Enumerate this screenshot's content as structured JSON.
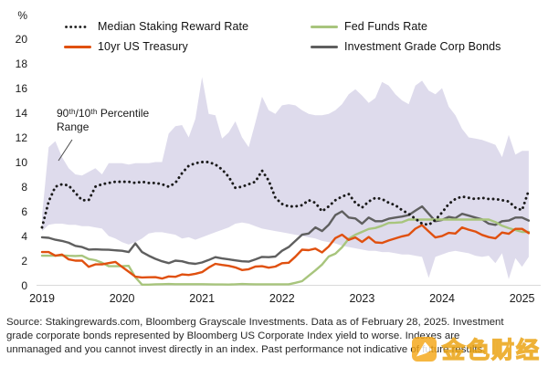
{
  "legend": {
    "items": [
      {
        "label": "Median Staking Reward Rate",
        "color": "#1a1a1a",
        "style": "dotted"
      },
      {
        "label": "Fed Funds Rate",
        "color": "#a8c57d",
        "style": "solid"
      },
      {
        "label": "10yr US Treasury",
        "color": "#e0500f",
        "style": "solid"
      },
      {
        "label": "Investment Grade Corp Bonds",
        "color": "#5f5f5f",
        "style": "solid"
      }
    ]
  },
  "axis": {
    "unit_label": "%",
    "y_ticks": [
      0,
      2,
      4,
      6,
      8,
      10,
      12,
      14,
      16,
      18,
      20
    ],
    "x_ticks": [
      "2019",
      "2020",
      "2021",
      "2022",
      "2023",
      "2024",
      "2025"
    ]
  },
  "annotation": {
    "line1": "90ᵗʰ/10ᵗʰ Percentile",
    "line2": "Range"
  },
  "footer": {
    "lines": [
      "Source: Stakingrewards.com, Bloomberg Grayscale Investments. Data as of February 28, 2025. Investment",
      "grade corporate bonds represented by Bloomberg US Corporate Index yield to worse. Indexes are",
      "unmanaged and you cannot invest directly in an index. Past performance not indicative of future results."
    ]
  },
  "watermark": {
    "text": "金色财经",
    "color": "#f2a31c"
  },
  "chart_data": {
    "type": "line",
    "x_unit": "month",
    "x_start": "2019-01",
    "x_end": "2025-02",
    "ylim": [
      0,
      20
    ],
    "grid": false,
    "legend_position": "top",
    "band": {
      "name": "90th/10th Percentile Range",
      "color": "#dedbec",
      "p90": [
        5.6,
        11.2,
        11.7,
        10.4,
        9.5,
        9.0,
        8.9,
        9.2,
        9.5,
        9.0,
        9.9,
        9.9,
        9.9,
        9.8,
        9.9,
        9.9,
        9.9,
        10.0,
        10.0,
        12.3,
        12.9,
        13.0,
        12.0,
        13.5,
        16.9,
        13.9,
        13.8,
        11.9,
        12.4,
        13.3,
        12.0,
        11.2,
        13.2,
        15.3,
        14.2,
        13.9,
        14.6,
        14.7,
        14.6,
        14.2,
        13.9,
        13.8,
        13.8,
        13.9,
        14.2,
        14.7,
        15.5,
        15.9,
        15.4,
        14.8,
        15.2,
        16.5,
        16.2,
        15.5,
        15.0,
        14.7,
        16.2,
        16.6,
        15.8,
        15.5,
        16.0,
        14.5,
        13.8,
        12.7,
        12.0,
        11.9,
        11.8,
        11.6,
        11.4,
        10.4,
        12.2,
        10.6,
        10.9,
        10.9
      ],
      "p10": [
        4.4,
        4.9,
        5.0,
        5.0,
        4.9,
        4.9,
        4.8,
        4.8,
        4.7,
        4.6,
        4.0,
        3.8,
        3.5,
        3.3,
        3.5,
        3.8,
        4.2,
        4.3,
        4.3,
        4.2,
        4.1,
        3.8,
        3.9,
        3.7,
        3.9,
        4.1,
        4.3,
        4.5,
        4.7,
        5.0,
        5.1,
        5.0,
        4.8,
        4.6,
        4.5,
        4.4,
        4.3,
        4.2,
        4.1,
        4.0,
        3.9,
        3.8,
        3.6,
        3.5,
        3.4,
        3.2,
        3.1,
        3.0,
        2.9,
        2.8,
        2.8,
        2.7,
        2.7,
        2.6,
        2.5,
        2.5,
        2.4,
        2.3,
        0.6,
        2.3,
        2.5,
        2.7,
        2.8,
        2.7,
        2.6,
        2.4,
        2.3,
        2.4,
        1.8,
        2.6,
        0.5,
        2.2,
        1.5,
        2.3
      ]
    },
    "series": [
      {
        "name": "Median Staking Reward Rate",
        "style": "dotted",
        "color": "#1a1a1a",
        "values": [
          4.7,
          6.8,
          8.0,
          8.2,
          8.1,
          7.5,
          6.9,
          6.9,
          8.0,
          8.2,
          8.3,
          8.4,
          8.4,
          8.4,
          8.3,
          8.4,
          8.3,
          8.3,
          8.2,
          8.0,
          8.3,
          9.1,
          9.7,
          9.9,
          10.0,
          10.0,
          9.8,
          9.4,
          8.8,
          7.9,
          8.0,
          8.2,
          8.4,
          9.3,
          8.5,
          7.1,
          6.6,
          6.4,
          6.4,
          6.5,
          6.9,
          6.7,
          6.0,
          6.4,
          6.9,
          7.2,
          7.4,
          6.7,
          6.3,
          6.8,
          7.1,
          7.0,
          6.7,
          6.5,
          6.1,
          5.8,
          5.4,
          5.0,
          4.9,
          5.3,
          5.9,
          6.6,
          7.0,
          7.2,
          7.1,
          7.0,
          7.1,
          7.0,
          7.0,
          6.9,
          6.8,
          6.3,
          6.1,
          7.7
        ]
      },
      {
        "name": "10yr US Treasury",
        "style": "solid",
        "color": "#e0500f",
        "values": [
          2.7,
          2.7,
          2.4,
          2.5,
          2.1,
          2.0,
          2.0,
          1.5,
          1.7,
          1.7,
          1.8,
          1.9,
          1.5,
          1.1,
          0.7,
          0.64,
          0.65,
          0.66,
          0.55,
          0.72,
          0.69,
          0.88,
          0.84,
          0.93,
          1.07,
          1.44,
          1.74,
          1.65,
          1.58,
          1.45,
          1.24,
          1.3,
          1.52,
          1.55,
          1.43,
          1.52,
          1.79,
          1.83,
          2.32,
          2.89,
          2.85,
          2.98,
          2.67,
          3.15,
          3.83,
          4.1,
          3.68,
          3.88,
          3.52,
          3.92,
          3.48,
          3.44,
          3.64,
          3.81,
          3.97,
          4.09,
          4.59,
          4.88,
          4.37,
          3.88,
          3.99,
          4.25,
          4.2,
          4.69,
          4.51,
          4.36,
          4.09,
          3.91,
          3.81,
          4.28,
          4.18,
          4.58,
          4.58,
          4.24
        ]
      },
      {
        "name": "Fed Funds Rate",
        "style": "solid",
        "color": "#a8c57d",
        "values": [
          2.4,
          2.4,
          2.41,
          2.42,
          2.39,
          2.38,
          2.4,
          2.13,
          2.04,
          1.83,
          1.55,
          1.55,
          1.55,
          1.58,
          0.65,
          0.05,
          0.05,
          0.08,
          0.09,
          0.1,
          0.09,
          0.09,
          0.09,
          0.09,
          0.09,
          0.08,
          0.07,
          0.07,
          0.06,
          0.08,
          0.1,
          0.09,
          0.08,
          0.08,
          0.08,
          0.08,
          0.08,
          0.08,
          0.2,
          0.33,
          0.77,
          1.21,
          1.68,
          2.33,
          2.56,
          3.08,
          3.78,
          4.1,
          4.33,
          4.57,
          4.65,
          4.83,
          5.06,
          5.08,
          5.12,
          5.33,
          5.33,
          5.33,
          5.33,
          5.33,
          5.33,
          5.33,
          5.33,
          5.33,
          5.33,
          5.33,
          5.33,
          5.33,
          5.13,
          4.83,
          4.64,
          4.48,
          4.33,
          4.33
        ]
      },
      {
        "name": "Investment Grade Corp Bonds",
        "style": "solid",
        "color": "#5f5f5f",
        "values": [
          3.9,
          3.85,
          3.7,
          3.6,
          3.45,
          3.2,
          3.1,
          2.9,
          2.92,
          2.9,
          2.88,
          2.84,
          2.8,
          2.7,
          3.4,
          2.7,
          2.4,
          2.15,
          1.95,
          1.8,
          2.0,
          1.95,
          1.8,
          1.74,
          1.85,
          2.05,
          2.28,
          2.18,
          2.1,
          2.02,
          1.95,
          1.92,
          2.1,
          2.3,
          2.28,
          2.33,
          2.8,
          3.1,
          3.6,
          4.1,
          4.2,
          4.7,
          4.4,
          4.9,
          5.7,
          6.0,
          5.5,
          5.42,
          5.0,
          5.5,
          5.2,
          5.2,
          5.4,
          5.5,
          5.58,
          5.7,
          6.05,
          6.4,
          5.8,
          5.2,
          5.3,
          5.55,
          5.45,
          5.8,
          5.65,
          5.5,
          5.35,
          5.0,
          4.9,
          5.2,
          5.25,
          5.5,
          5.5,
          5.25
        ]
      }
    ]
  }
}
